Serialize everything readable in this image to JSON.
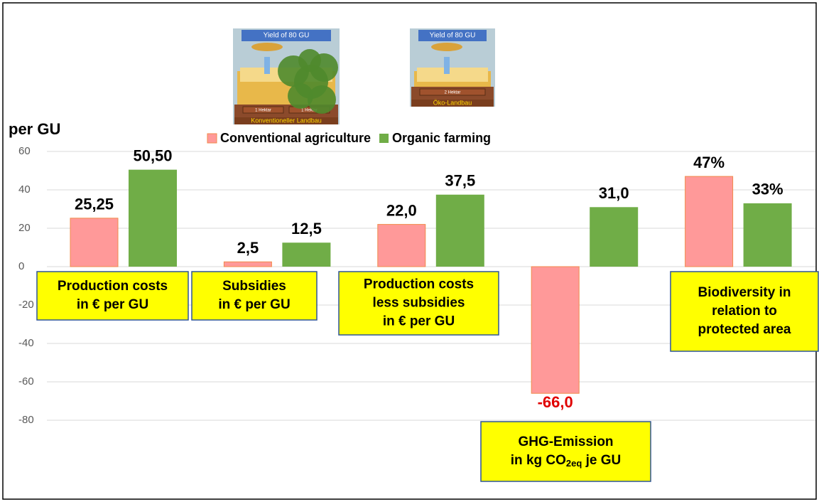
{
  "chart_data": {
    "type": "bar",
    "y_label": "per GU",
    "categories": [
      [
        "Production costs",
        "in € per GU"
      ],
      [
        "Subsidies",
        "in € per GU"
      ],
      [
        "Production costs",
        "less subsidies",
        "in € per GU"
      ],
      [
        "GHG-Emission",
        [
          "in kg CO",
          "2eq",
          " je GU"
        ]
      ],
      [
        "Biodiversity in",
        "relation to",
        "protected area"
      ]
    ],
    "series": [
      {
        "name": "Conventional agriculture",
        "color": "#ff9999",
        "values": [
          25.25,
          2.5,
          22.0,
          -66.0,
          47
        ],
        "value_labels": [
          "25,25",
          "2,5",
          "22,0",
          "-66,0",
          "47%"
        ]
      },
      {
        "name": "Organic farming",
        "color": "#70ad47",
        "values": [
          50.5,
          12.5,
          37.5,
          31.0,
          33
        ],
        "value_labels": [
          "50,50",
          "12,5",
          "37,5",
          "31,0",
          "33%"
        ]
      }
    ],
    "ylim": [
      -80,
      60
    ],
    "yticks": [
      -80,
      -60,
      -40,
      -20,
      0,
      20,
      40,
      60
    ],
    "grid": true,
    "legend": "top",
    "illustrations": [
      {
        "caption": "Yield of 80 GU",
        "plots": [
          "1 Hektar",
          "1 Hektar"
        ],
        "label": "Konventioneller Landbau"
      },
      {
        "caption": "Yield of 80 GU",
        "plots": [
          "2 Hektar"
        ],
        "label": "Öko-Landbau"
      }
    ]
  }
}
